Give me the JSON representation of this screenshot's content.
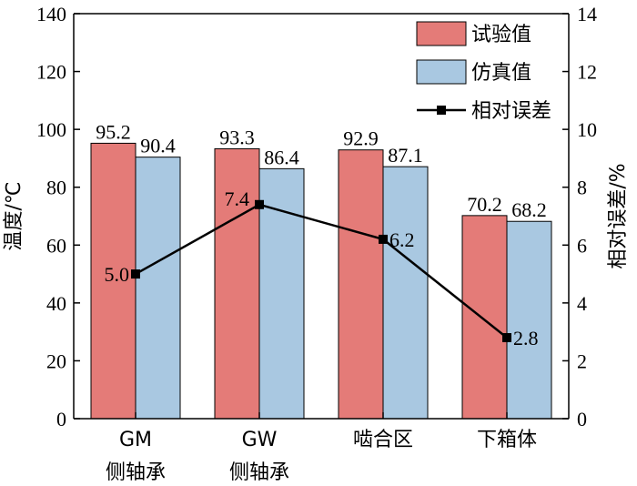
{
  "chart_data": {
    "type": "bar",
    "categories": [
      [
        "GM",
        "侧轴承"
      ],
      [
        "GW",
        "侧轴承"
      ],
      [
        "啮合区"
      ],
      [
        "下箱体"
      ]
    ],
    "series": [
      {
        "name": "试验值",
        "type": "bar",
        "axis": "left",
        "color": "#e47b78",
        "values": [
          95.2,
          93.3,
          92.9,
          70.2
        ],
        "labels": [
          "95.2",
          "93.3",
          "92.9",
          "70.2"
        ]
      },
      {
        "name": "仿真值",
        "type": "bar",
        "axis": "left",
        "color": "#a9c8e1",
        "values": [
          90.4,
          86.4,
          87.1,
          68.2
        ],
        "labels": [
          "90.4",
          "86.4",
          "87.1",
          "68.2"
        ]
      },
      {
        "name": "相对误差",
        "type": "line",
        "axis": "right",
        "color": "#000000",
        "marker": "square",
        "values": [
          5.0,
          7.4,
          6.2,
          2.8
        ],
        "labels": [
          "5.0",
          "7.4",
          "6.2",
          "2.8"
        ]
      }
    ],
    "ylabel_left": "温度/℃",
    "ylabel_right": "相对误差/%",
    "ylim_left": [
      0,
      140
    ],
    "ylim_right": [
      0,
      14
    ],
    "yticks_left": [
      "0",
      "20",
      "40",
      "60",
      "80",
      "100",
      "120",
      "140"
    ],
    "yticks_right": [
      "0",
      "2",
      "4",
      "6",
      "8",
      "10",
      "12",
      "14"
    ],
    "grid": false,
    "legend_position": "top-right"
  }
}
